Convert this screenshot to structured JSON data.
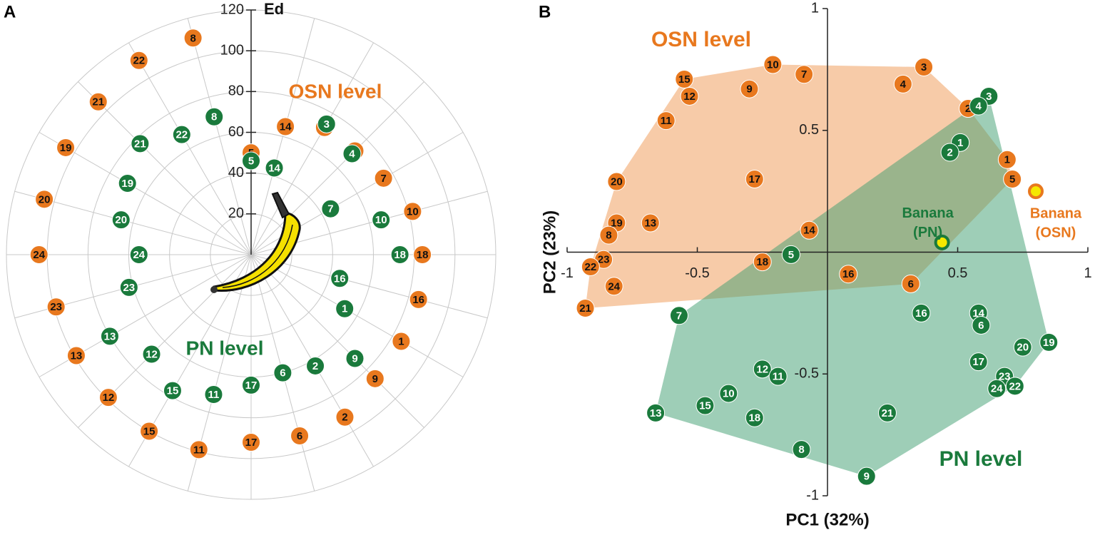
{
  "chart_data": [
    {
      "type": "polar",
      "panel": "A",
      "r_label": "Ed",
      "categories": [
        "18",
        "10",
        "7",
        "4",
        "3",
        "14",
        "5",
        "8",
        "22",
        "21",
        "19",
        "20",
        "24",
        "23",
        "13",
        "12",
        "15",
        "11",
        "17",
        "6",
        "2",
        "9",
        "1",
        "16"
      ],
      "rlim": [
        0,
        120
      ],
      "rticks": [
        20,
        40,
        60,
        80,
        100,
        120
      ],
      "grid": true,
      "series": [
        {
          "name": "OSN level",
          "color": "#e8781e",
          "text_color": "#111111",
          "values": [
            84,
            82,
            75,
            72,
            72,
            65,
            50,
            110,
            110,
            106,
            105,
            105,
            104,
            99,
            99,
            99,
            100,
            99,
            92,
            92,
            92,
            86,
            85,
            85
          ]
        },
        {
          "name": "PN level",
          "color": "#1a7a3c",
          "text_color": "#ffffff",
          "values": [
            73,
            66,
            45,
            70,
            74,
            44,
            46,
            70,
            68,
            77,
            70,
            66,
            55,
            62,
            80,
            69,
            77,
            71,
            64,
            60,
            63,
            72,
            53,
            45
          ]
        }
      ]
    },
    {
      "type": "scatter",
      "panel": "B",
      "x_label": "PC1 (32%)",
      "y_label": "PC2 (23%)",
      "xlim": [
        -1,
        1
      ],
      "ylim": [
        -1,
        1
      ],
      "xticks": [
        -1,
        -0.5,
        0.5,
        1
      ],
      "yticks": [
        -1,
        -0.5,
        0.5,
        1
      ],
      "series": [
        {
          "name": "OSN level",
          "color": "#e8781e",
          "text_color": "#111111",
          "labels": [
            "3",
            "4",
            "10",
            "7",
            "15",
            "12",
            "9",
            "11",
            "2",
            "1",
            "5",
            "17",
            "20",
            "19",
            "13",
            "8",
            "14",
            "23",
            "22",
            "18",
            "16",
            "24",
            "6",
            "21"
          ],
          "x": [
            0.37,
            0.29,
            -0.21,
            -0.09,
            -0.55,
            -0.53,
            -0.3,
            -0.62,
            0.54,
            0.69,
            0.71,
            -0.28,
            -0.81,
            -0.81,
            -0.68,
            -0.84,
            -0.07,
            -0.86,
            -0.91,
            -0.25,
            0.08,
            -0.82,
            0.32,
            -0.93
          ],
          "y": [
            0.76,
            0.69,
            0.77,
            0.73,
            0.71,
            0.64,
            0.67,
            0.54,
            0.59,
            0.38,
            0.3,
            0.3,
            0.29,
            0.12,
            0.12,
            0.07,
            0.09,
            -0.03,
            -0.06,
            -0.04,
            -0.09,
            -0.14,
            -0.13,
            -0.23
          ]
        },
        {
          "name": "PN level",
          "color": "#1a7a3c",
          "text_color": "#ffffff",
          "labels": [
            "3",
            "4",
            "1",
            "2",
            "5",
            "14",
            "6",
            "16",
            "7",
            "19",
            "20",
            "17",
            "23",
            "24",
            "22",
            "12",
            "11",
            "10",
            "15",
            "18",
            "13",
            "21",
            "8",
            "9"
          ],
          "x": [
            0.62,
            0.58,
            0.51,
            0.47,
            -0.14,
            0.58,
            0.59,
            0.36,
            -0.57,
            0.85,
            0.75,
            0.58,
            0.68,
            0.65,
            0.72,
            -0.25,
            -0.19,
            -0.38,
            -0.47,
            -0.28,
            -0.66,
            0.23,
            -0.1,
            0.15
          ],
          "y": [
            0.64,
            0.6,
            0.45,
            0.41,
            -0.01,
            -0.25,
            -0.3,
            -0.25,
            -0.26,
            -0.37,
            -0.39,
            -0.45,
            -0.51,
            -0.56,
            -0.55,
            -0.48,
            -0.51,
            -0.58,
            -0.63,
            -0.68,
            -0.66,
            -0.66,
            -0.81,
            -0.92
          ]
        }
      ],
      "points": [
        {
          "label_lines": [
            "Banana",
            "(PN)"
          ],
          "x": 0.44,
          "y": 0.04,
          "color": "#1a7a3c"
        },
        {
          "label_lines": [
            "Banana",
            "(OSN)"
          ],
          "x": 0.8,
          "y": 0.25,
          "color": "#e8781e"
        }
      ]
    }
  ]
}
